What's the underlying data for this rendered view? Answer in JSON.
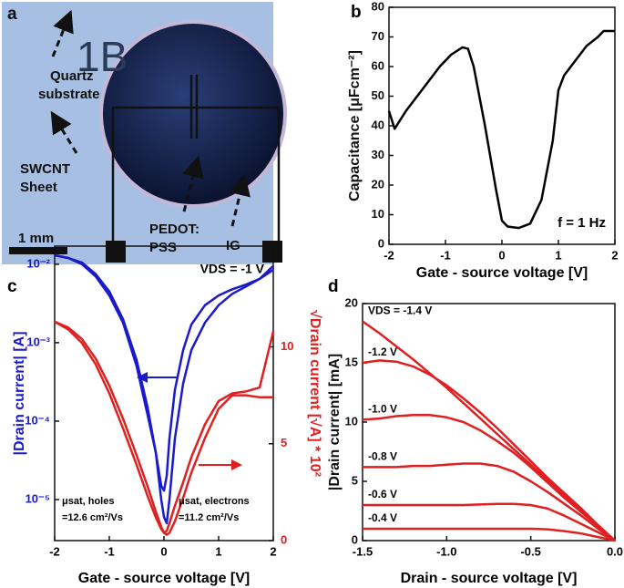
{
  "panel_a": {
    "panel": "a",
    "marking": "1B",
    "labels": [
      "Quartz",
      "substrate",
      "SWCNT",
      "Sheet",
      "PEDOT:",
      "PSS",
      "IG"
    ],
    "scale_bar": "1 mm"
  },
  "chart_data": [
    {
      "type": "line",
      "panel": "b",
      "xlabel": "Gate - source voltage [V]",
      "ylabel": "Capacitance [μFcm⁻²]",
      "annotations": [
        "f = 1 Hz"
      ],
      "x": [
        -2,
        -1.9,
        -1.7,
        -1.5,
        -1.3,
        -1.1,
        -0.9,
        -0.7,
        -0.6,
        -0.5,
        -0.3,
        -0.1,
        0,
        0.1,
        0.3,
        0.5,
        0.7,
        0.9,
        1,
        1.1,
        1.3,
        1.5,
        1.7,
        1.8,
        2
      ],
      "series": [
        {
          "color": "#000000",
          "values": [
            45,
            39,
            45,
            50,
            55,
            60,
            64,
            66.5,
            66,
            60,
            40,
            18,
            8,
            6,
            5.5,
            7,
            15,
            35,
            52,
            57,
            62,
            67,
            70,
            72,
            72
          ]
        }
      ],
      "xlim": [
        -2,
        2
      ],
      "xticks": [
        -2,
        -1,
        0,
        1,
        2
      ],
      "ylim": [
        0,
        80
      ],
      "yticks": [
        0,
        10,
        20,
        30,
        40,
        50,
        60,
        70,
        80
      ]
    },
    {
      "type": "line",
      "panel": "c",
      "xlabel": "Gate - source voltage [V]",
      "ylabel": "|Drain current| [A]",
      "y2label": "√Drain current [√A] * 10²",
      "ycolor": "#1a1acc",
      "y2color": "#e02020",
      "y_log": true,
      "annotations": [
        "VDS = -1 V",
        "μsat, holes",
        "=12.6 cm²/Vs",
        "μsat, electrons",
        "=11.2 cm²/Vs"
      ],
      "x": [
        -2,
        -1.75,
        -1.5,
        -1.25,
        -1,
        -0.75,
        -0.5,
        -0.3,
        -0.15,
        -0.05,
        0,
        0.05,
        0.1,
        0.2,
        0.35,
        0.5,
        0.75,
        1,
        1.25,
        1.5,
        1.75,
        2
      ],
      "series": [
        {
          "color": "#1a1acc",
          "values": [
            0.013,
            0.012,
            0.01,
            0.007,
            0.004,
            0.0018,
            0.0005,
            0.00012,
            4e-05,
            1.5e-05,
            1.3e-05,
            2e-05,
            6e-05,
            0.00025,
            0.0008,
            0.0017,
            0.003,
            0.004,
            0.0048,
            0.0055,
            0.0065,
            0.0085
          ]
        },
        {
          "color": "#1a1acc",
          "values": [
            0.013,
            0.012,
            0.0105,
            0.0075,
            0.0045,
            0.002,
            0.0006,
            0.00015,
            4e-05,
            1e-05,
            6e-06,
            5e-06,
            1e-05,
            6e-05,
            0.0003,
            0.0008,
            0.0018,
            0.003,
            0.0042,
            0.0052,
            0.0065,
            0.0095
          ]
        },
        {
          "color": "#e02020",
          "axis": "y2",
          "values": [
            11.3,
            11,
            10.4,
            9.4,
            8,
            6.3,
            4.4,
            2.8,
            1.5,
            0.7,
            0.4,
            0.3,
            0.4,
            1,
            2.2,
            3.5,
            5.3,
            6.8,
            7.5,
            7.5,
            7.4,
            7.4
          ]
        },
        {
          "color": "#e02020",
          "axis": "y2",
          "values": [
            11.3,
            10.9,
            10.2,
            9.1,
            7.6,
            5.8,
            3.9,
            2.3,
            1.2,
            0.6,
            0.4,
            0.5,
            0.9,
            1.8,
            3,
            4.3,
            6,
            7.2,
            7.6,
            7.7,
            7.9,
            10.8
          ]
        }
      ],
      "xlim": [
        -2,
        2
      ],
      "xticks": [
        -2,
        -1,
        0,
        1,
        2
      ],
      "ylim": [
        3e-06,
        0.017
      ],
      "yticks": [
        {
          "value": 1e-05,
          "label": "10⁻⁵"
        },
        {
          "value": 0.0001,
          "label": "10⁻⁴"
        },
        {
          "value": 0.001,
          "label": "10⁻³"
        },
        {
          "value": 0.01,
          "label": "10⁻²"
        }
      ],
      "y2lim": [
        0,
        15.2
      ],
      "y2ticks": [
        0,
        5,
        10
      ]
    },
    {
      "type": "line",
      "panel": "d",
      "xlabel": "Drain - source voltage [V]",
      "ylabel": "|Drain current| [mA]",
      "x": [
        -1.5,
        -1.4,
        -1.3,
        -1.2,
        -1.1,
        -1,
        -0.9,
        -0.8,
        -0.7,
        -0.6,
        -0.5,
        -0.4,
        -0.3,
        -0.2,
        -0.1,
        0
      ],
      "series": [
        {
          "name": "VDS = -1.4 V",
          "color": "#e02020",
          "values": [
            18.5,
            17.5,
            16.4,
            15.3,
            14.1,
            12.9,
            11.6,
            10.3,
            9,
            7.7,
            6.4,
            5.1,
            3.8,
            2.5,
            1.3,
            0
          ]
        },
        {
          "name": "-1.2 V",
          "color": "#e02020",
          "values": [
            15,
            15.2,
            15.1,
            14.7,
            14,
            13.1,
            12,
            10.8,
            9.5,
            8.1,
            6.7,
            5.3,
            4,
            2.7,
            1.3,
            0
          ]
        },
        {
          "name": "-1.0 V",
          "color": "#e02020",
          "values": [
            10.2,
            10.3,
            10.5,
            10.6,
            10.6,
            10.4,
            10,
            9.3,
            8.4,
            7.4,
            6.2,
            4.9,
            3.6,
            2.4,
            1.2,
            0
          ]
        },
        {
          "name": "-0.8 V",
          "color": "#e02020",
          "values": [
            6.2,
            6.2,
            6.2,
            6.3,
            6.3,
            6.4,
            6.5,
            6.5,
            6.3,
            5.8,
            5,
            4.1,
            3.1,
            2.1,
            1,
            0
          ]
        },
        {
          "name": "-0.6 V",
          "color": "#e02020",
          "values": [
            3,
            3,
            3,
            3,
            3,
            3,
            3,
            3.05,
            3.1,
            3.1,
            3,
            2.7,
            2.1,
            1.4,
            0.7,
            0
          ]
        },
        {
          "name": "-0.4 V",
          "color": "#e02020",
          "values": [
            1,
            1,
            1,
            1,
            1,
            1,
            1,
            1,
            1,
            1,
            1,
            0.95,
            0.8,
            0.6,
            0.3,
            0
          ]
        }
      ],
      "xlim": [
        -1.5,
        0
      ],
      "xticks": [
        -1.5,
        {
          "value": -1,
          "label": "-1.0"
        },
        -0.5,
        {
          "value": 0,
          "label": "0.0"
        }
      ],
      "ylim": [
        0,
        20
      ],
      "yticks": [
        0,
        5,
        10,
        15,
        20
      ]
    }
  ]
}
